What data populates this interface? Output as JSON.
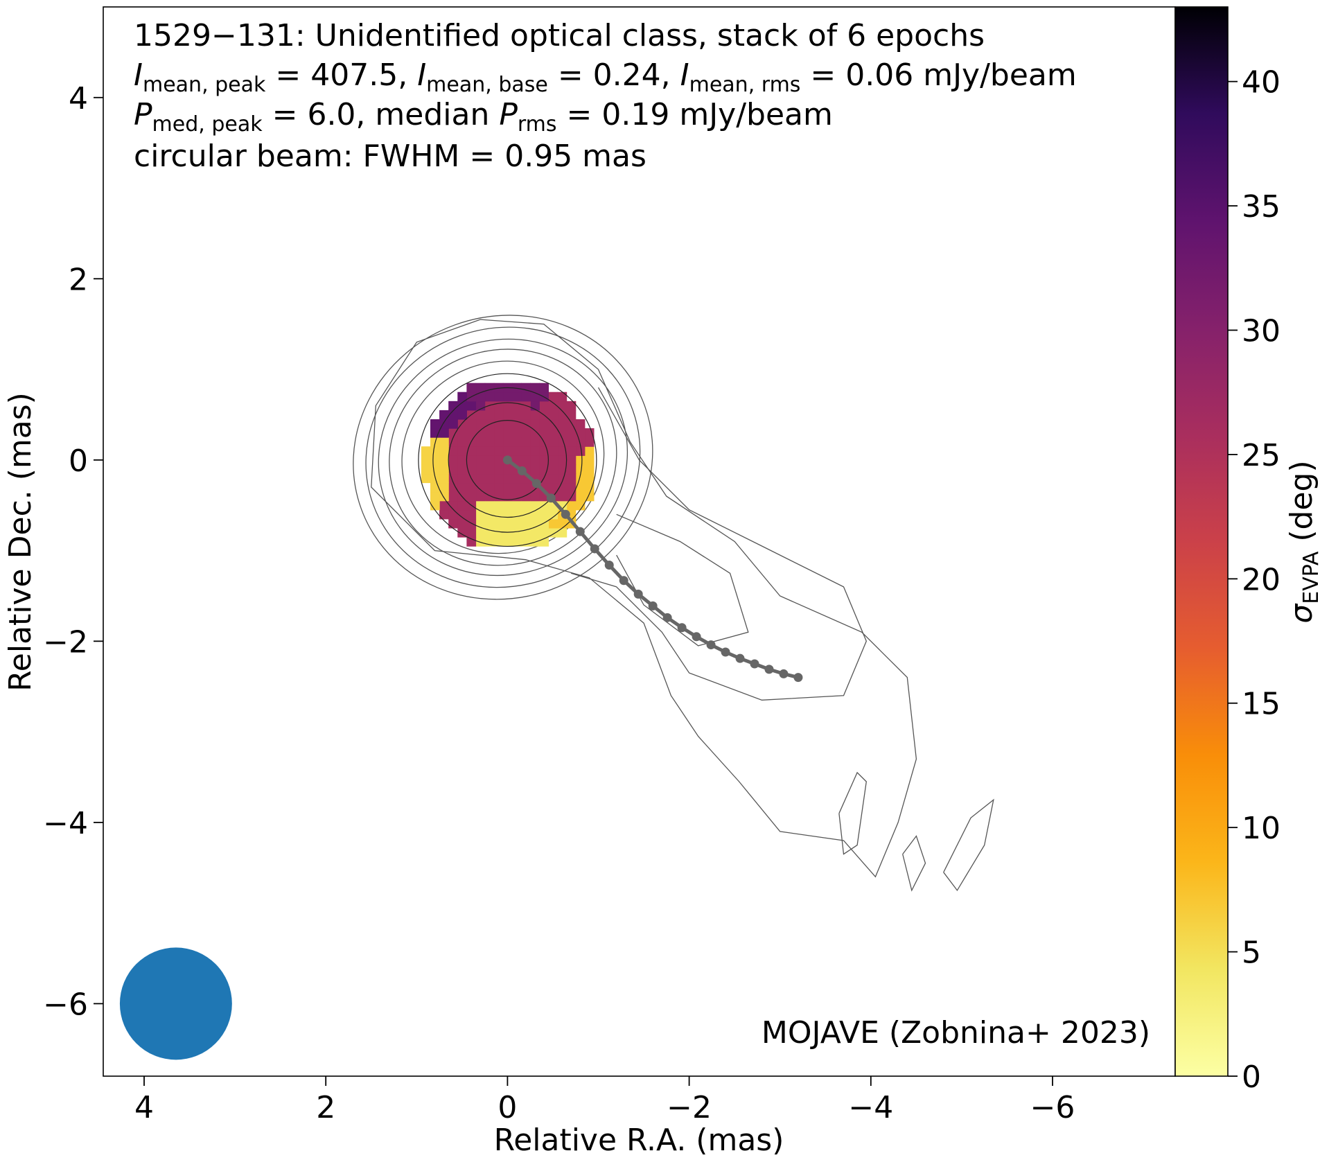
{
  "chart_data": {
    "type": "heatmap",
    "title_lines": [
      "1529−131: Unidentified optical class, stack of 6 epochs",
      "Imean, peak = 407.5, Imean, base = 0.24, Imean, rms = 0.06 mJy/beam",
      "Pmed, peak = 6.0, median Prms = 0.19 mJy/beam",
      "circular beam: FWHM = 0.95 mas"
    ],
    "title_segments": {
      "line2": {
        "s1": "I",
        "s1_sub": "mean, peak",
        "s1_val": " = 407.5, ",
        "s2": "I",
        "s2_sub": "mean, base",
        "s2_val": " = 0.24, ",
        "s3": "I",
        "s3_sub": "mean, rms",
        "s3_val": " = 0.06 mJy/beam"
      },
      "line3": {
        "s1": "P",
        "s1_sub": "med, peak",
        "s1_val": " = 6.0, median ",
        "s2": "P",
        "s2_sub": "rms",
        "s2_val": " = 0.19 mJy/beam"
      }
    },
    "credit": "MOJAVE (Zobnina+ 2023)",
    "xlabel": "Relative R.A. (mas)",
    "ylabel": "Relative Dec. (mas)",
    "colorbar_label": "σ",
    "colorbar_label_sub": "EVPA",
    "colorbar_label_unit": " (deg)",
    "xlim": [
      4.45,
      -7.35
    ],
    "ylim": [
      -6.8,
      5.0
    ],
    "xticks": [
      4,
      2,
      0,
      -2,
      -4,
      -6
    ],
    "xtick_labels": [
      "4",
      "2",
      "0",
      "−2",
      "−4",
      "−6"
    ],
    "yticks": [
      4,
      2,
      0,
      -2,
      -4,
      -6
    ],
    "ytick_labels": [
      "4",
      "2",
      "0",
      "−2",
      "−4",
      "−6"
    ],
    "colorbar_range": [
      0,
      43
    ],
    "colorbar_ticks": [
      0,
      5,
      10,
      15,
      20,
      25,
      30,
      35,
      40
    ],
    "colormap": "inferno_r",
    "beam": {
      "x": 3.65,
      "y": -6.0,
      "fwhm_mas": 0.95,
      "color": "#1f77b4"
    },
    "ridgeline": {
      "color": "#666666",
      "x": [
        0,
        -0.16,
        -0.32,
        -0.48,
        -0.64,
        -0.8,
        -0.96,
        -1.12,
        -1.28,
        -1.44,
        -1.6,
        -1.76,
        -1.92,
        -2.08,
        -2.24,
        -2.4,
        -2.56,
        -2.72,
        -2.88,
        -3.04,
        -3.2
      ],
      "y": [
        0,
        -0.12,
        -0.26,
        -0.42,
        -0.6,
        -0.79,
        -0.98,
        -1.16,
        -1.33,
        -1.48,
        -1.61,
        -1.74,
        -1.85,
        -1.95,
        -2.04,
        -2.12,
        -2.19,
        -2.25,
        -2.31,
        -2.36,
        -2.4
      ]
    },
    "core_contours_radii_mas": [
      0.45,
      0.65,
      0.82,
      0.98
    ],
    "heatmap_regions": [
      {
        "region": "inner disc",
        "sigma_evpa_deg": 26
      },
      {
        "region": "north cap",
        "sigma_evpa_deg": 32
      },
      {
        "region": "north-west cap",
        "sigma_evpa_deg": 34
      },
      {
        "region": "south-west rim",
        "sigma_evpa_deg": 7
      },
      {
        "region": "south rim",
        "sigma_evpa_deg": 4
      },
      {
        "region": "east-south-east edge",
        "sigma_evpa_deg": 6
      }
    ]
  }
}
